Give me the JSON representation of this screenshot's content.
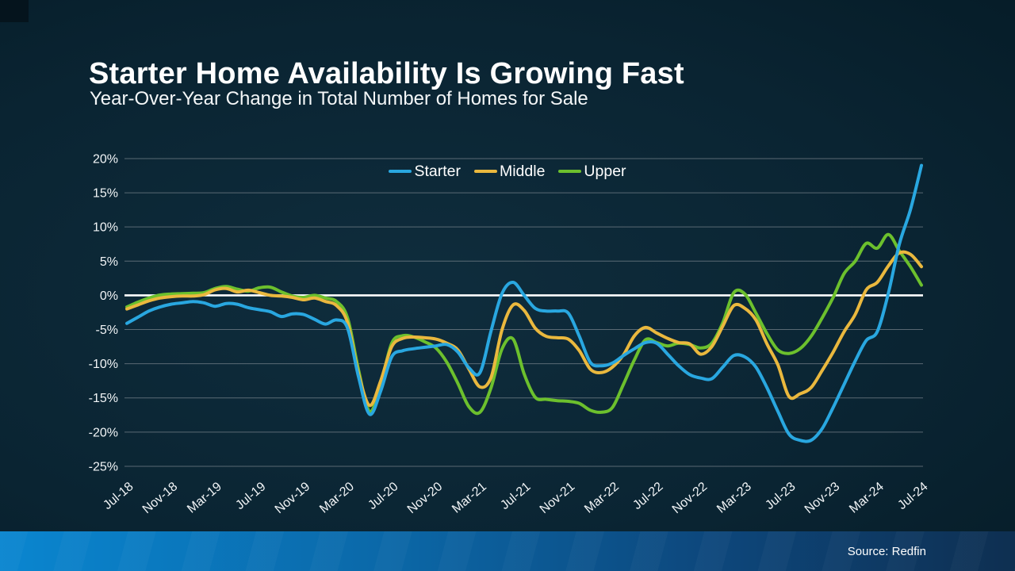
{
  "header": {
    "title": "Starter Home Availability Is Growing Fast",
    "subtitle": "Year-Over-Year Change in Total Number of Homes for Sale"
  },
  "footer": {
    "source": "Source: Redfin"
  },
  "colors": {
    "background_center": "#0f2d3d",
    "background_edge": "#041a25",
    "corner_square": "#05141d",
    "grid_line": "#848d95",
    "zero_line": "#ffffff",
    "axis_text": "#f2f5f7",
    "footer_bar_left": "#0a86d0",
    "footer_bar_right": "#0e2f51",
    "starter": "#29a7e0",
    "middle": "#eab83e",
    "upper": "#6cc02d"
  },
  "legend": {
    "items": [
      {
        "label": "Starter",
        "color": "#29a7e0"
      },
      {
        "label": "Middle",
        "color": "#eab83e"
      },
      {
        "label": "Upper",
        "color": "#6cc02d"
      }
    ]
  },
  "chart_data": {
    "type": "line",
    "title": "Starter Home Availability Is Growing Fast",
    "subtitle": "Year-Over-Year Change in Total Number of Homes for Sale",
    "ylabel": "",
    "xlabel": "",
    "ylim": [
      -25,
      20
    ],
    "y_tick_step": 5,
    "y_tick_labels": [
      "20%",
      "15%",
      "10%",
      "5%",
      "0%",
      "-5%",
      "-10%",
      "-15%",
      "-20%",
      "-25%"
    ],
    "grid": "horizontal gridlines, white emphasized zero line",
    "legend_position": "top-center",
    "x_tick_labels": [
      "Jul-18",
      "Nov-18",
      "Mar-19",
      "Jul-19",
      "Nov-19",
      "Mar-20",
      "Jul-20",
      "Nov-20",
      "Mar-21",
      "Jul-21",
      "Nov-21",
      "Mar-22",
      "Jul-22",
      "Nov-22",
      "Mar-23",
      "Jul-23",
      "Nov-23",
      "Mar-24",
      "Jul-24"
    ],
    "x_monthly": [
      "Jul-18",
      "Aug-18",
      "Sep-18",
      "Oct-18",
      "Nov-18",
      "Dec-18",
      "Jan-19",
      "Feb-19",
      "Mar-19",
      "Apr-19",
      "May-19",
      "Jun-19",
      "Jul-19",
      "Aug-19",
      "Sep-19",
      "Oct-19",
      "Nov-19",
      "Dec-19",
      "Jan-20",
      "Feb-20",
      "Mar-20",
      "Apr-20",
      "May-20",
      "Jun-20",
      "Jul-20",
      "Aug-20",
      "Sep-20",
      "Oct-20",
      "Nov-20",
      "Dec-20",
      "Jan-21",
      "Feb-21",
      "Mar-21",
      "Apr-21",
      "May-21",
      "Jun-21",
      "Jul-21",
      "Aug-21",
      "Sep-21",
      "Oct-21",
      "Nov-21",
      "Dec-21",
      "Jan-22",
      "Feb-22",
      "Mar-22",
      "Apr-22",
      "May-22",
      "Jun-22",
      "Jul-22",
      "Aug-22",
      "Sep-22",
      "Oct-22",
      "Nov-22",
      "Dec-22",
      "Jan-23",
      "Feb-23",
      "Mar-23",
      "Apr-23",
      "May-23",
      "Jun-23",
      "Jul-23",
      "Aug-23",
      "Sep-23",
      "Oct-23",
      "Nov-23",
      "Dec-23",
      "Jan-24",
      "Feb-24",
      "Mar-24",
      "Apr-24",
      "May-24",
      "Jun-24",
      "Jul-24"
    ],
    "series": [
      {
        "name": "Starter",
        "color": "#29a7e0",
        "values": [
          -4.1,
          -3.2,
          -2.3,
          -1.7,
          -1.3,
          -1.1,
          -0.9,
          -1.1,
          -1.6,
          -1.2,
          -1.3,
          -1.8,
          -2.1,
          -2.4,
          -3.1,
          -2.7,
          -2.8,
          -3.5,
          -4.2,
          -3.6,
          -4.8,
          -12.0,
          -17.4,
          -14.0,
          -9.0,
          -8.1,
          -7.8,
          -7.6,
          -7.4,
          -7.2,
          -8.3,
          -10.6,
          -11.3,
          -5.2,
          0.3,
          1.9,
          0.0,
          -1.9,
          -2.3,
          -2.3,
          -2.6,
          -6.0,
          -9.8,
          -10.3,
          -9.9,
          -8.8,
          -7.8,
          -6.9,
          -7.0,
          -8.6,
          -10.3,
          -11.6,
          -12.1,
          -12.2,
          -10.5,
          -8.8,
          -9.0,
          -10.5,
          -13.5,
          -17.0,
          -20.3,
          -21.2,
          -21.2,
          -19.5,
          -16.4,
          -13.0,
          -9.6,
          -6.6,
          -5.3,
          0.3,
          7.5,
          12.5,
          19.0
        ]
      },
      {
        "name": "Middle",
        "color": "#eab83e",
        "values": [
          -2.0,
          -1.4,
          -0.8,
          -0.4,
          -0.2,
          -0.1,
          -0.1,
          0.1,
          0.8,
          1.0,
          0.5,
          0.75,
          0.4,
          0.0,
          -0.1,
          -0.3,
          -0.65,
          -0.4,
          -0.9,
          -1.5,
          -4.0,
          -11.5,
          -16.1,
          -12.5,
          -7.5,
          -6.3,
          -6.1,
          -6.2,
          -6.4,
          -7.0,
          -8.0,
          -10.8,
          -13.4,
          -12.0,
          -5.0,
          -1.4,
          -2.2,
          -4.8,
          -6.0,
          -6.2,
          -6.4,
          -8.1,
          -10.8,
          -11.3,
          -10.5,
          -8.7,
          -5.9,
          -4.7,
          -5.5,
          -6.3,
          -6.9,
          -7.1,
          -8.6,
          -7.5,
          -4.5,
          -1.5,
          -1.9,
          -3.6,
          -7.1,
          -10.2,
          -14.8,
          -14.4,
          -13.5,
          -11.0,
          -8.3,
          -5.3,
          -2.8,
          0.8,
          1.9,
          4.3,
          6.2,
          6.0,
          4.2
        ]
      },
      {
        "name": "Upper",
        "color": "#6cc02d",
        "values": [
          -1.7,
          -1.0,
          -0.4,
          0.05,
          0.2,
          0.25,
          0.3,
          0.4,
          1.0,
          1.3,
          0.9,
          0.6,
          1.1,
          1.2,
          0.5,
          -0.1,
          -0.3,
          0.0,
          -0.4,
          -0.9,
          -3.3,
          -11.0,
          -17.0,
          -13.0,
          -7.0,
          -5.9,
          -6.1,
          -6.8,
          -7.7,
          -9.8,
          -12.9,
          -16.3,
          -17.1,
          -13.5,
          -7.8,
          -6.4,
          -11.5,
          -14.9,
          -15.2,
          -15.4,
          -15.5,
          -15.8,
          -16.8,
          -17.1,
          -16.4,
          -13.0,
          -9.4,
          -6.5,
          -6.9,
          -7.4,
          -7.0,
          -7.2,
          -7.7,
          -7.0,
          -4.0,
          0.4,
          0.2,
          -2.6,
          -5.6,
          -8.0,
          -8.5,
          -7.8,
          -6.0,
          -3.3,
          -0.3,
          3.2,
          5.0,
          7.6,
          6.9,
          8.9,
          6.5,
          4.2,
          1.5
        ]
      }
    ]
  }
}
